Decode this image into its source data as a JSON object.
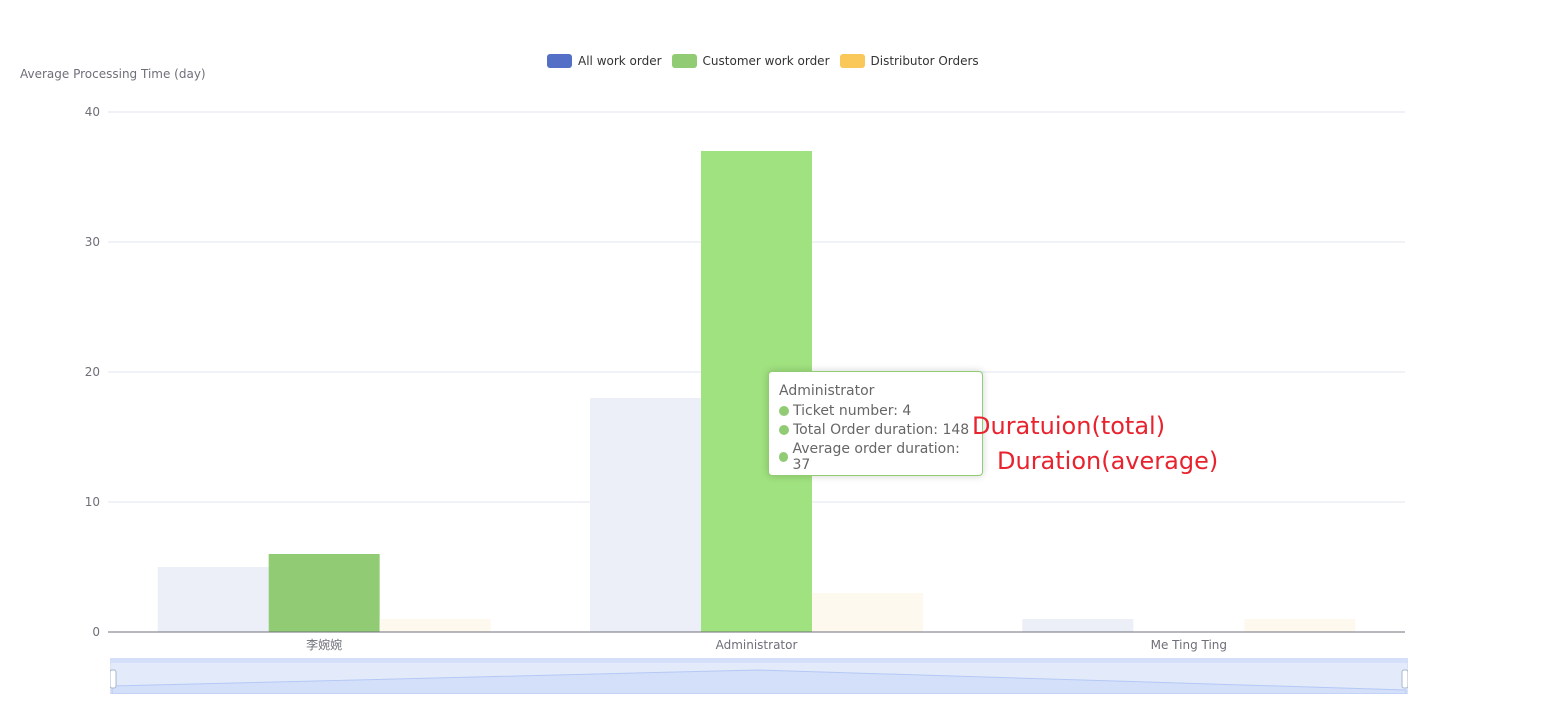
{
  "chart_data": {
    "type": "bar",
    "categories": [
      "李婉婉",
      "Administrator",
      "Me Ting Ting"
    ],
    "series": [
      {
        "name": "All work order",
        "values": [
          5,
          18,
          1
        ],
        "color": "#5470c6",
        "dim_color": "#eceff8"
      },
      {
        "name": "Customer work order",
        "values": [
          6,
          37,
          0
        ],
        "color": "#91cc75",
        "highlight_color": "#a0e27f"
      },
      {
        "name": "Distributor Orders",
        "values": [
          1,
          3,
          1
        ],
        "color": "#fac858",
        "dim_color": "#fdf9ee"
      }
    ],
    "ylabel": "Average Processing Time (day)",
    "ylim": [
      0,
      40
    ],
    "yticks": [
      0,
      10,
      20,
      30,
      40
    ],
    "grid": true,
    "legend_position": "top-center",
    "highlighted_category": "Administrator",
    "highlighted_series": "Customer work order"
  },
  "tooltip": {
    "title": "Administrator",
    "rows": [
      {
        "label": "Ticket number: 4"
      },
      {
        "label": "Total Order duration: 148"
      },
      {
        "label": "Average order duration: 37"
      }
    ],
    "dot_color": "#91cc75"
  },
  "annotations": {
    "total": "Duratuion(total)",
    "average": "Duration(average)"
  },
  "colors": {
    "grid": "#e0e6f1",
    "axis": "#6e7079",
    "annotation": "#e8232e",
    "datazoom_fill": "#e3ebfb",
    "datazoom_area": "#d4e0fa"
  }
}
